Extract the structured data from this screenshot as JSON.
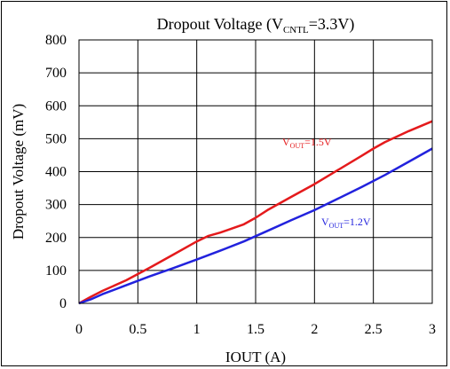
{
  "chart_data": {
    "type": "line",
    "title": {
      "main": "Dropout Voltage (V",
      "sub": "CNTL",
      "rest": "=3.3V)"
    },
    "xlabel": "IOUT (A)",
    "ylabel": "Dropout Voltage (mV)",
    "xlim": [
      0,
      3
    ],
    "ylim": [
      0,
      800
    ],
    "xticks": [
      0,
      0.5,
      1,
      1.5,
      2,
      2.5,
      3
    ],
    "xtick_labels": [
      "0",
      "0.5",
      "1",
      "1.5",
      "2",
      "2.5",
      "3"
    ],
    "yticks": [
      0,
      100,
      200,
      300,
      400,
      500,
      600,
      700,
      800
    ],
    "ytick_labels": [
      "0",
      "100",
      "200",
      "300",
      "400",
      "500",
      "600",
      "700",
      "800"
    ],
    "grid": true,
    "series": [
      {
        "label": {
          "main": "V",
          "sub": "OUT",
          "rest": "=1.5V"
        },
        "color": "#e41a1c",
        "x": [
          0,
          0.1,
          0.2,
          0.4,
          0.6,
          0.8,
          1.0,
          1.1,
          1.2,
          1.4,
          1.5,
          1.6,
          1.8,
          2.0,
          2.2,
          2.4,
          2.5,
          2.6,
          2.8,
          3.0
        ],
        "y": [
          0,
          20,
          38,
          70,
          108,
          148,
          188,
          205,
          215,
          240,
          260,
          283,
          323,
          362,
          405,
          448,
          470,
          490,
          523,
          553
        ]
      },
      {
        "label": {
          "main": "V",
          "sub": "OUT",
          "rest": "=1.2V"
        },
        "color": "#2222dd",
        "x": [
          0,
          0.1,
          0.2,
          0.4,
          0.6,
          0.8,
          1.0,
          1.2,
          1.4,
          1.6,
          1.8,
          2.0,
          2.2,
          2.4,
          2.6,
          2.8,
          3.0
        ],
        "y": [
          0,
          12,
          28,
          55,
          82,
          107,
          133,
          160,
          188,
          220,
          252,
          283,
          318,
          353,
          390,
          430,
          470
        ]
      }
    ]
  }
}
